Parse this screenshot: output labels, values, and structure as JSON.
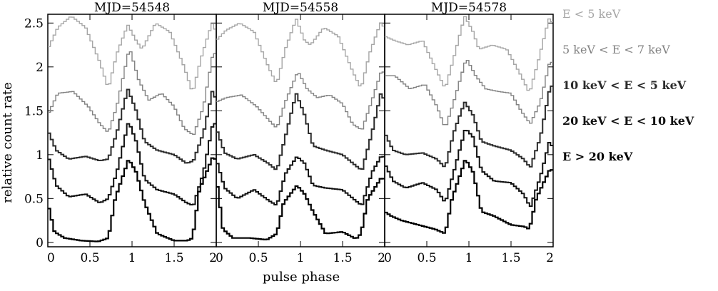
{
  "chart_data": {
    "type": "line",
    "xlabel": "pulse phase",
    "ylabel": "relative count rate",
    "xlim": [
      0,
      2
    ],
    "ylim": [
      -0.05,
      2.6
    ],
    "xticks": [
      "0",
      "0.5",
      "1",
      "1.5",
      "2"
    ],
    "xtick_values": [
      0,
      0.5,
      1,
      1.5,
      2
    ],
    "yticks": [
      "0",
      "0.5",
      "1",
      "1.5",
      "2",
      "2.5"
    ],
    "ytick_values": [
      0,
      0.5,
      1,
      1.5,
      2,
      2.5
    ],
    "colors": {
      "e1": "#a6a6a6",
      "e2": "#828282",
      "e3": "#2b2b2b",
      "e4": "#111111",
      "e5": "#000000"
    },
    "series_labels": [
      {
        "key": "e1",
        "text": "E < 5 keV"
      },
      {
        "key": "e2",
        "text": "5 keV < E < 7 keV"
      },
      {
        "key": "e3",
        "text": "10 keV < E < 5 keV"
      },
      {
        "key": "e4",
        "text": "20 keV < E < 10 keV"
      },
      {
        "key": "e5",
        "text": "E > 20 keV"
      }
    ],
    "panels": [
      {
        "title": "MJD=54548",
        "profiles": {
          "e1": {
            "phase": [
              0,
              0.12,
              0.28,
              0.45,
              0.62,
              0.72,
              0.82,
              0.95,
              1.05,
              1.12,
              1.28,
              1.45,
              1.62,
              1.72,
              1.82,
              1.95,
              2.0
            ],
            "value": [
              2.2,
              2.45,
              2.58,
              2.45,
              2.05,
              1.75,
              2.15,
              2.48,
              2.3,
              2.2,
              2.5,
              2.4,
              2.0,
              1.7,
              2.1,
              2.5,
              2.4
            ]
          },
          "e2": {
            "phase": [
              0,
              0.12,
              0.3,
              0.48,
              0.62,
              0.72,
              0.82,
              0.97,
              1.08,
              1.2,
              1.35,
              1.5,
              1.62,
              1.73,
              1.85,
              1.97,
              2.0
            ],
            "value": [
              1.45,
              1.7,
              1.72,
              1.55,
              1.35,
              1.25,
              1.55,
              2.22,
              1.85,
              1.62,
              1.7,
              1.55,
              1.3,
              1.22,
              1.55,
              2.2,
              2.1
            ]
          },
          "e3": {
            "phase": [
              0,
              0.1,
              0.25,
              0.45,
              0.62,
              0.72,
              0.82,
              0.95,
              1.05,
              1.15,
              1.3,
              1.5,
              1.65,
              1.73,
              1.85,
              1.96,
              2.0
            ],
            "value": [
              1.28,
              1.05,
              0.95,
              0.98,
              0.93,
              0.95,
              1.25,
              1.75,
              1.5,
              1.15,
              1.05,
              1.0,
              0.9,
              0.93,
              1.25,
              1.75,
              1.6
            ]
          },
          "e4": {
            "phase": [
              0,
              0.1,
              0.25,
              0.45,
              0.62,
              0.72,
              0.82,
              0.96,
              1.05,
              1.15,
              1.3,
              1.5,
              1.65,
              1.73,
              1.85,
              1.97,
              2.0
            ],
            "value": [
              1.0,
              0.65,
              0.52,
              0.55,
              0.45,
              0.5,
              0.8,
              1.38,
              1.15,
              0.72,
              0.6,
              0.55,
              0.45,
              0.42,
              0.8,
              1.4,
              1.3
            ]
          },
          "e5": {
            "phase": [
              0,
              0.08,
              0.2,
              0.4,
              0.6,
              0.72,
              0.8,
              0.96,
              1.05,
              1.15,
              1.3,
              1.5,
              1.66,
              1.72,
              1.8,
              1.97,
              2.0
            ],
            "value": [
              0.45,
              0.12,
              0.05,
              0.02,
              0.01,
              0.05,
              0.5,
              0.95,
              0.8,
              0.45,
              0.1,
              0.02,
              0.02,
              0.05,
              0.6,
              1.0,
              0.9
            ]
          }
        }
      },
      {
        "title": "MJD=54558",
        "profiles": {
          "e1": {
            "phase": [
              0,
              0.12,
              0.28,
              0.45,
              0.62,
              0.72,
              0.82,
              0.95,
              1.05,
              1.12,
              1.28,
              1.45,
              1.62,
              1.72,
              1.82,
              1.95,
              2.0
            ],
            "value": [
              2.3,
              2.42,
              2.5,
              2.4,
              2.0,
              1.8,
              2.2,
              2.55,
              2.3,
              2.25,
              2.45,
              2.35,
              1.95,
              1.75,
              2.15,
              2.5,
              2.45
            ]
          },
          "e2": {
            "phase": [
              0,
              0.12,
              0.3,
              0.48,
              0.62,
              0.72,
              0.82,
              0.97,
              1.08,
              1.2,
              1.35,
              1.5,
              1.62,
              1.73,
              1.85,
              1.97,
              2.0
            ],
            "value": [
              1.6,
              1.65,
              1.68,
              1.55,
              1.4,
              1.3,
              1.6,
              1.95,
              1.75,
              1.65,
              1.68,
              1.58,
              1.35,
              1.28,
              1.62,
              1.98,
              1.9
            ]
          },
          "e3": {
            "phase": [
              0,
              0.1,
              0.25,
              0.45,
              0.62,
              0.72,
              0.82,
              0.95,
              1.05,
              1.15,
              1.3,
              1.5,
              1.65,
              1.73,
              1.85,
              1.96,
              2.0
            ],
            "value": [
              1.3,
              1.02,
              0.95,
              1.0,
              0.9,
              0.82,
              1.2,
              1.7,
              1.45,
              1.1,
              1.05,
              1.0,
              0.88,
              0.82,
              1.25,
              1.72,
              1.6
            ]
          },
          "e4": {
            "phase": [
              0,
              0.1,
              0.25,
              0.45,
              0.62,
              0.72,
              0.82,
              0.96,
              1.05,
              1.15,
              1.3,
              1.5,
              1.65,
              1.73,
              1.85,
              1.97,
              2.0
            ],
            "value": [
              0.95,
              0.62,
              0.5,
              0.6,
              0.48,
              0.42,
              0.78,
              0.98,
              0.9,
              0.65,
              0.62,
              0.6,
              0.48,
              0.42,
              0.8,
              1.0,
              0.95
            ]
          },
          "e5": {
            "phase": [
              0,
              0.08,
              0.2,
              0.4,
              0.6,
              0.72,
              0.8,
              0.96,
              1.05,
              1.15,
              1.3,
              1.5,
              1.66,
              1.72,
              1.8,
              1.97,
              2.0
            ],
            "value": [
              0.75,
              0.15,
              0.05,
              0.05,
              0.03,
              0.1,
              0.45,
              0.65,
              0.55,
              0.35,
              0.1,
              0.12,
              0.04,
              0.1,
              0.5,
              0.75,
              0.7
            ]
          }
        }
      },
      {
        "title": "MJD=54578",
        "profiles": {
          "e1": {
            "phase": [
              0,
              0.12,
              0.28,
              0.45,
              0.62,
              0.72,
              0.82,
              0.95,
              1.05,
              1.12,
              1.28,
              1.45,
              1.62,
              1.72,
              1.82,
              1.95,
              2.0
            ],
            "value": [
              2.35,
              2.3,
              2.25,
              2.3,
              1.95,
              1.75,
              2.1,
              2.58,
              2.4,
              2.2,
              2.25,
              2.2,
              1.9,
              1.7,
              2.05,
              2.55,
              2.5
            ]
          },
          "e2": {
            "phase": [
              0,
              0.12,
              0.3,
              0.48,
              0.62,
              0.72,
              0.82,
              0.97,
              1.08,
              1.2,
              1.35,
              1.5,
              1.62,
              1.73,
              1.85,
              1.97,
              2.0
            ],
            "value": [
              1.9,
              1.9,
              1.75,
              1.8,
              1.55,
              1.3,
              1.6,
              2.1,
              1.9,
              1.75,
              1.72,
              1.7,
              1.5,
              1.35,
              1.6,
              2.1,
              2.0
            ]
          },
          "e3": {
            "phase": [
              0,
              0.1,
              0.25,
              0.45,
              0.62,
              0.72,
              0.82,
              0.95,
              1.05,
              1.15,
              1.3,
              1.5,
              1.65,
              1.73,
              1.85,
              1.96,
              2.0
            ],
            "value": [
              1.25,
              1.05,
              1.0,
              1.02,
              0.95,
              0.85,
              1.25,
              1.6,
              1.45,
              1.15,
              1.1,
              1.05,
              0.95,
              0.85,
              1.2,
              1.75,
              1.8
            ]
          },
          "e4": {
            "phase": [
              0,
              0.1,
              0.25,
              0.45,
              0.62,
              0.72,
              0.82,
              0.96,
              1.05,
              1.15,
              1.3,
              1.5,
              1.65,
              1.73,
              1.85,
              1.97,
              2.0
            ],
            "value": [
              0.9,
              0.7,
              0.62,
              0.68,
              0.6,
              0.45,
              0.8,
              1.3,
              1.2,
              0.82,
              0.7,
              0.68,
              0.55,
              0.4,
              0.75,
              1.2,
              1.0
            ]
          },
          "e5": {
            "phase": [
              0,
              0.08,
              0.2,
              0.4,
              0.6,
              0.72,
              0.8,
              0.96,
              1.05,
              1.15,
              1.3,
              1.5,
              1.66,
              1.72,
              1.8,
              1.97,
              2.0
            ],
            "value": [
              0.35,
              0.3,
              0.25,
              0.2,
              0.15,
              0.1,
              0.5,
              0.95,
              0.8,
              0.35,
              0.3,
              0.2,
              0.18,
              0.15,
              0.5,
              0.85,
              0.8
            ]
          }
        }
      }
    ]
  }
}
